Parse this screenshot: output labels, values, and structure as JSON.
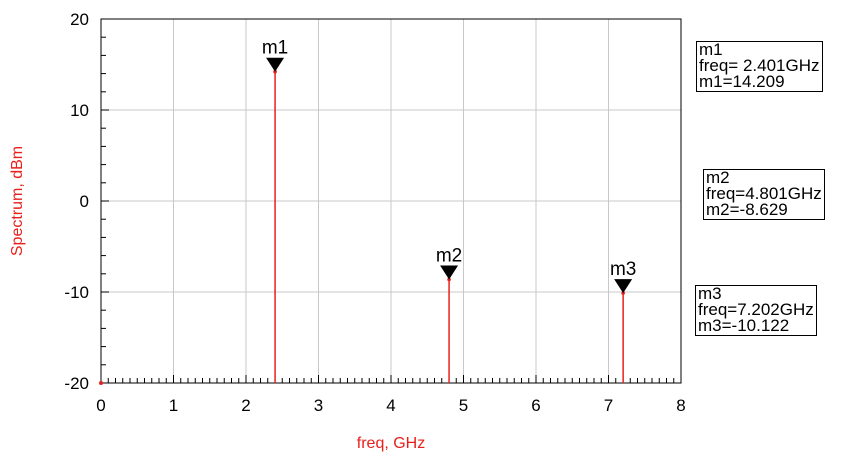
{
  "chart_data": {
    "type": "line",
    "xlabel": "freq, GHz",
    "ylabel": "Spectrum, dBm",
    "xlim": [
      0,
      8
    ],
    "ylim": [
      -20,
      20
    ],
    "x_ticks": [
      "0",
      "1",
      "2",
      "3",
      "4",
      "5",
      "6",
      "7",
      "8"
    ],
    "y_ticks": [
      "20",
      "10",
      "0",
      "-10",
      "-20"
    ],
    "grid": true,
    "colors": {
      "trace": "#e8201c",
      "axis_title": "#e8201c",
      "grid": "#c8c8c8",
      "marker": "#000000"
    },
    "spectral_lines": [
      {
        "freq": 2.401,
        "value": 14.209
      },
      {
        "freq": 4.801,
        "value": -8.629
      },
      {
        "freq": 7.202,
        "value": -10.122
      }
    ],
    "baseline": -20
  },
  "markers": [
    {
      "name": "m1",
      "freq": 2.401,
      "value": 14.209,
      "freq_text": "freq= 2.401GHz",
      "value_text": "m1=14.209"
    },
    {
      "name": "m2",
      "freq": 4.801,
      "value": -8.629,
      "freq_text": "freq=4.801GHz",
      "value_text": "m2=-8.629"
    },
    {
      "name": "m3",
      "freq": 7.202,
      "value": -10.122,
      "freq_text": "freq=7.202GHz",
      "value_text": "m3=-10.122"
    }
  ]
}
